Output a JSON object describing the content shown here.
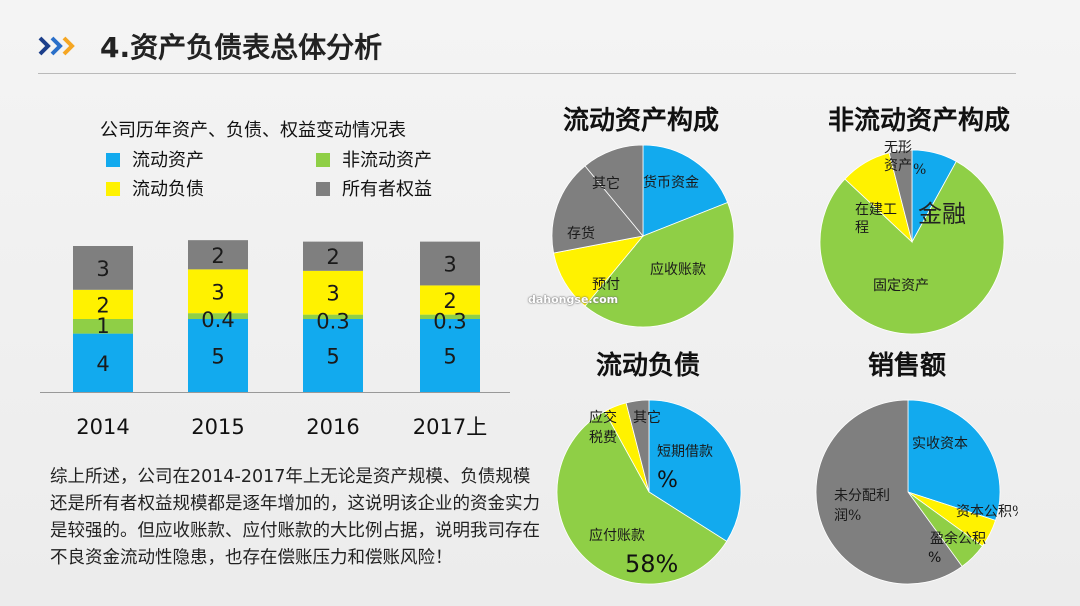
{
  "header": {
    "title": "4.资产负债表总体分析"
  },
  "summary": "综上所述，公司在2014-2017年上无论是资产规模、负债规模还是所有者权益规模都是逐年增加的，这说明该企业的资金实力是较强的。但应收账款、应付账款的大比例占据，说明我司存在不良资金流动性隐患，也存在偿账压力和偿账风险！",
  "watermark": "dahongse.com",
  "colors": {
    "blue": "#12aaee",
    "green": "#8fcf46",
    "yellow": "#fff200",
    "gray": "#7f7f7f"
  },
  "chart_data": [
    {
      "type": "bar",
      "stacked": true,
      "title": "公司历年资产、负债、权益变动情况表",
      "legend": [
        "流动资产",
        "非流动资产",
        "流动负债",
        "所有者权益"
      ],
      "categories": [
        "2014",
        "2015",
        "2016",
        "2017上"
      ],
      "series": [
        {
          "name": "流动资产",
          "color": "#12aaee",
          "values": [
            4,
            5,
            5,
            5
          ],
          "labels": [
            "4",
            "5",
            "5",
            "5"
          ]
        },
        {
          "name": "非流动资产",
          "color": "#8fcf46",
          "values": [
            1,
            0.4,
            0.3,
            0.3
          ],
          "labels": [
            "1",
            "0.4",
            "0.3",
            "0.3"
          ]
        },
        {
          "name": "流动负债",
          "color": "#fff200",
          "values": [
            2,
            3,
            3,
            2
          ],
          "labels": [
            "2",
            "3",
            "3",
            "2"
          ]
        },
        {
          "name": "所有者权益",
          "color": "#7f7f7f",
          "values": [
            3,
            2,
            2,
            3
          ],
          "labels": [
            "3",
            "2",
            "2",
            "3"
          ]
        }
      ]
    },
    {
      "type": "pie",
      "title": "流动资产构成",
      "slices": [
        {
          "label": "货币资金",
          "value": 19,
          "color": "#12aaee"
        },
        {
          "label": "应收账款",
          "value": 42,
          "color": "#8fcf46"
        },
        {
          "label": "预付",
          "value": 11,
          "color": "#fff200"
        },
        {
          "label": "存货",
          "value": 17,
          "color": "#7f7f7f"
        },
        {
          "label": "其它",
          "value": 11,
          "color": "#7f7f7f"
        }
      ]
    },
    {
      "type": "pie",
      "title": "非流动资产构成",
      "slices": [
        {
          "label": "%",
          "value": 8,
          "color": "#12aaee"
        },
        {
          "label": "固定资产",
          "value": 79,
          "color": "#8fcf46"
        },
        {
          "label": "在建工程",
          "value": 9,
          "color": "#fff200"
        },
        {
          "label": "无形资产",
          "value": 4,
          "color": "#7f7f7f"
        }
      ],
      "annotation": "金融"
    },
    {
      "type": "pie",
      "title": "流动负债",
      "slices": [
        {
          "label": "短期借款",
          "value": 34,
          "color": "#12aaee",
          "pct": "%"
        },
        {
          "label": "应付账款",
          "value": 58,
          "color": "#8fcf46",
          "pct": "58%"
        },
        {
          "label": "应交税费",
          "value": 4,
          "color": "#fff200"
        },
        {
          "label": "其它",
          "value": 4,
          "color": "#7f7f7f"
        }
      ]
    },
    {
      "type": "pie",
      "title": "销售额",
      "slices": [
        {
          "label": "实收资本",
          "value": 30,
          "color": "#12aaee"
        },
        {
          "label": "资本公积%",
          "value": 5,
          "color": "#fff200"
        },
        {
          "label": "盈余公积",
          "value": 5,
          "color": "#8fcf46",
          "pct": "%"
        },
        {
          "label": "未分配利润%",
          "value": 60,
          "color": "#7f7f7f"
        }
      ]
    }
  ]
}
